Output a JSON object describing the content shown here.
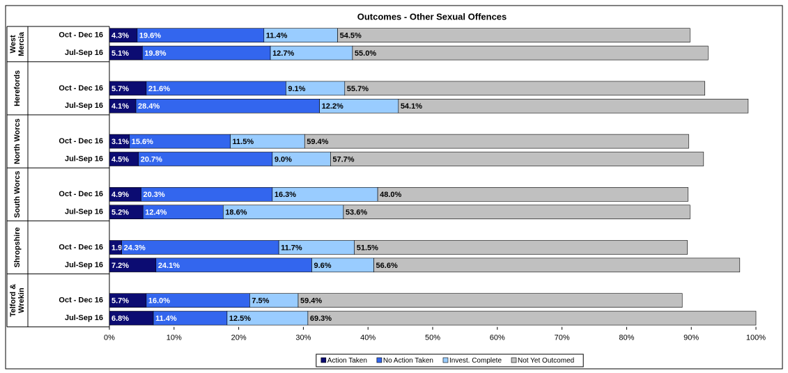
{
  "chart_data": {
    "type": "stacked-bar-horizontal",
    "title": "Outcomes - Other Sexual Offences",
    "groups": [
      [
        "West",
        "Mercia"
      ],
      [
        "Herefords"
      ],
      [
        "North Worcs"
      ],
      [
        "South Worcs"
      ],
      [
        "Shropshire"
      ],
      [
        "Telford &",
        "Wrekin"
      ]
    ],
    "categories": [
      "Oct - Dec 16",
      "Jul-Sep 16",
      "Oct - Dec 16",
      "Jul-Sep 16",
      "Oct - Dec 16",
      "Jul-Sep 16",
      "Oct - Dec 16",
      "Jul-Sep 16",
      "Oct - Dec 16",
      "Jul-Sep 16",
      "Oct - Dec 16",
      "Jul-Sep 16"
    ],
    "series": [
      {
        "name": "Action Taken",
        "color": "#0c0c72",
        "values": [
          4.3,
          5.1,
          5.7,
          4.1,
          3.1,
          4.5,
          4.9,
          5.2,
          1.9,
          7.2,
          5.7,
          6.8
        ],
        "value_labels": [
          "4.3%",
          "5.1%",
          "5.7%",
          "4.1%",
          "3.1%",
          "4.5%",
          "4.9%",
          "5.2%",
          "1.9%",
          "7.2%",
          "5.7%",
          "6.8%"
        ]
      },
      {
        "name": "No Action Taken",
        "color": "#3366ee",
        "values": [
          19.6,
          19.8,
          21.6,
          28.4,
          15.6,
          20.7,
          20.3,
          12.4,
          24.3,
          24.1,
          16,
          11.4
        ],
        "value_labels": [
          "19.6%",
          "19.8%",
          "21.6%",
          "28.4%",
          "15.6%",
          "20.7%",
          "20.3%",
          "12.4%",
          "24.3%",
          "24.1%",
          "16.0%",
          "11.4%"
        ]
      },
      {
        "name": "Invest. Complete",
        "color": "#99ccff",
        "values": [
          11.4,
          12.7,
          9.1,
          12.2,
          11.5,
          9,
          16.3,
          18.6,
          11.7,
          9.6,
          7.5,
          12.5
        ],
        "value_labels": [
          "11.4%",
          "12.7%",
          "9.1%",
          "12.2%",
          "11.5%",
          "9.0%",
          "16.3%",
          "18.6%",
          "11.7%",
          "9.6%",
          "7.5%",
          "12.5%"
        ]
      },
      {
        "name": "Not Yet Outcomed",
        "color": "#c0c0c0",
        "values": [
          54.5,
          55,
          55.7,
          54.1,
          59.4,
          57.7,
          48,
          53.6,
          51.5,
          56.6,
          59.4,
          69.3
        ],
        "value_labels": [
          "54.5%",
          "55.0%",
          "55.7%",
          "54.1%",
          "59.4%",
          "57.7%",
          "48.0%",
          "53.6%",
          "51.5%",
          "56.6%",
          "59.4%",
          "69.3%"
        ]
      }
    ],
    "xlim": [
      0,
      100
    ],
    "xticks": [
      {
        "value": 0,
        "label": "0%"
      },
      {
        "value": 10,
        "label": "10%"
      },
      {
        "value": 20,
        "label": "20%"
      },
      {
        "value": 30,
        "label": "30%"
      },
      {
        "value": 40,
        "label": "40%"
      },
      {
        "value": 50,
        "label": "50%"
      },
      {
        "value": 60,
        "label": "60%"
      },
      {
        "value": 70,
        "label": "70%"
      },
      {
        "value": 80,
        "label": "80%"
      },
      {
        "value": 90,
        "label": "90%"
      },
      {
        "value": 100,
        "label": "100%"
      }
    ],
    "legend": "bottom"
  }
}
